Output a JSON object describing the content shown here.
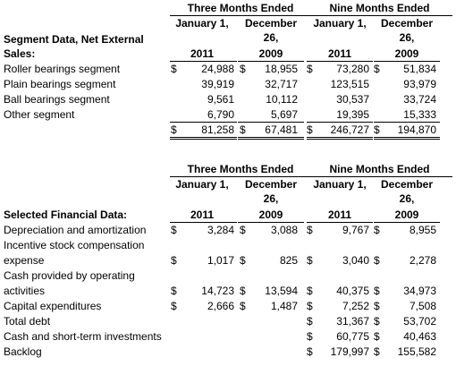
{
  "table1": {
    "period_headers": [
      "Three Months Ended",
      "Nine Months Ended"
    ],
    "col_headers": [
      [
        "January 1,"
      ],
      [
        "December",
        "26,"
      ],
      [
        "January 1,"
      ],
      [
        "December",
        "26,"
      ]
    ],
    "section_label": [
      "Segment Data, Net External",
      "Sales:"
    ],
    "years": [
      "2011",
      "2009",
      "2011",
      "2009"
    ],
    "rows": [
      {
        "label": [
          "Roller bearings segment"
        ],
        "values": [
          "24,988",
          "18,955",
          "73,280",
          "51,834"
        ],
        "dollar": true
      },
      {
        "label": [
          "Plain bearings segment"
        ],
        "values": [
          "39,919",
          "32,717",
          "123,515",
          "93,979"
        ],
        "dollar": false
      },
      {
        "label": [
          "Ball bearings segment"
        ],
        "values": [
          "9,561",
          "10,112",
          "30,537",
          "33,724"
        ],
        "dollar": false
      },
      {
        "label": [
          "Other segment"
        ],
        "values": [
          "6,790",
          "5,697",
          "19,395",
          "15,333"
        ],
        "dollar": false
      }
    ],
    "total": {
      "values": [
        "81,258",
        "67,481",
        "246,727",
        "194,870"
      ]
    }
  },
  "table2": {
    "period_headers": [
      "Three Months Ended",
      "Nine Months Ended"
    ],
    "col_headers": [
      [
        "January 1,"
      ],
      [
        "December",
        "26,"
      ],
      [
        "January 1,"
      ],
      [
        "December",
        "26,"
      ]
    ],
    "section_label": [
      "Selected Financial Data:"
    ],
    "years": [
      "2011",
      "2009",
      "2011",
      "2009"
    ],
    "rows": [
      {
        "label": [
          "Depreciation and amortization"
        ],
        "values": [
          "3,284",
          "3,088",
          "9,767",
          "8,955"
        ],
        "dollar": true
      },
      {
        "label": [
          "Incentive stock compensation",
          "expense"
        ],
        "values": [
          "1,017",
          "825",
          "3,040",
          "2,278"
        ],
        "dollar": true
      },
      {
        "label": [
          "Cash provided by operating",
          "activities"
        ],
        "values": [
          "14,723",
          "13,594",
          "40,375",
          "34,973"
        ],
        "dollar": true
      },
      {
        "label": [
          "Capital expenditures"
        ],
        "values": [
          "2,666",
          "1,487",
          "7,252",
          "7,508"
        ],
        "dollar": true
      },
      {
        "label": [
          "Total debt"
        ],
        "values": [
          "",
          "",
          "31,367",
          "53,702"
        ],
        "dollar": true
      },
      {
        "label": [
          "Cash and short-term investments"
        ],
        "values": [
          "",
          "",
          "60,775",
          "40,463"
        ],
        "dollar": true
      },
      {
        "label": [
          "Backlog"
        ],
        "values": [
          "",
          "",
          "179,997",
          "155,582"
        ],
        "dollar": true
      }
    ]
  },
  "currency_symbol": "$"
}
